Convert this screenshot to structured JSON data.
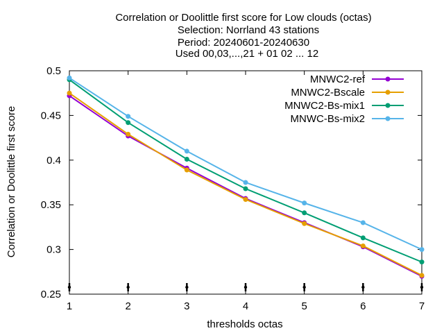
{
  "chart_data": {
    "type": "line",
    "title_lines": [
      "Correlation or Doolittle first score  for Low clouds (octas)",
      "Selection: Norrland     43 stations",
      "Period: 20240601-20240630",
      "Used 00,03,...,21 + 01 02 ... 12"
    ],
    "xlabel": "thresholds octas",
    "ylabel": "Correlation or Doolittle first score",
    "x": [
      1,
      2,
      3,
      4,
      5,
      6,
      7
    ],
    "xlim": [
      1,
      7
    ],
    "ylim": [
      0.25,
      0.5
    ],
    "x_ticks": [
      "1",
      "2",
      "3",
      "4",
      "5",
      "6",
      "7"
    ],
    "y_ticks": [
      "0.25",
      "0.3",
      "0.35",
      "0.4",
      "0.45",
      "0.5"
    ],
    "y_tick_values": [
      0.25,
      0.3,
      0.35,
      0.4,
      0.45,
      0.5
    ],
    "grid": false,
    "legend_position": "top-right",
    "series": [
      {
        "name": "MNWC2-ref",
        "color": "#9400d3",
        "values": [
          0.472,
          0.427,
          0.391,
          0.357,
          0.33,
          0.303,
          0.27
        ]
      },
      {
        "name": "MNWC2-Bscale",
        "color": "#e69f00",
        "values": [
          0.475,
          0.429,
          0.389,
          0.356,
          0.329,
          0.304,
          0.271
        ]
      },
      {
        "name": "MNWC2-Bs-mix1",
        "color": "#009e73",
        "values": [
          0.49,
          0.442,
          0.401,
          0.368,
          0.341,
          0.313,
          0.286
        ]
      },
      {
        "name": "MNWC-Bs-mix2",
        "color": "#56b4e9",
        "values": [
          0.492,
          0.449,
          0.41,
          0.375,
          0.352,
          0.33,
          0.3
        ]
      }
    ]
  }
}
